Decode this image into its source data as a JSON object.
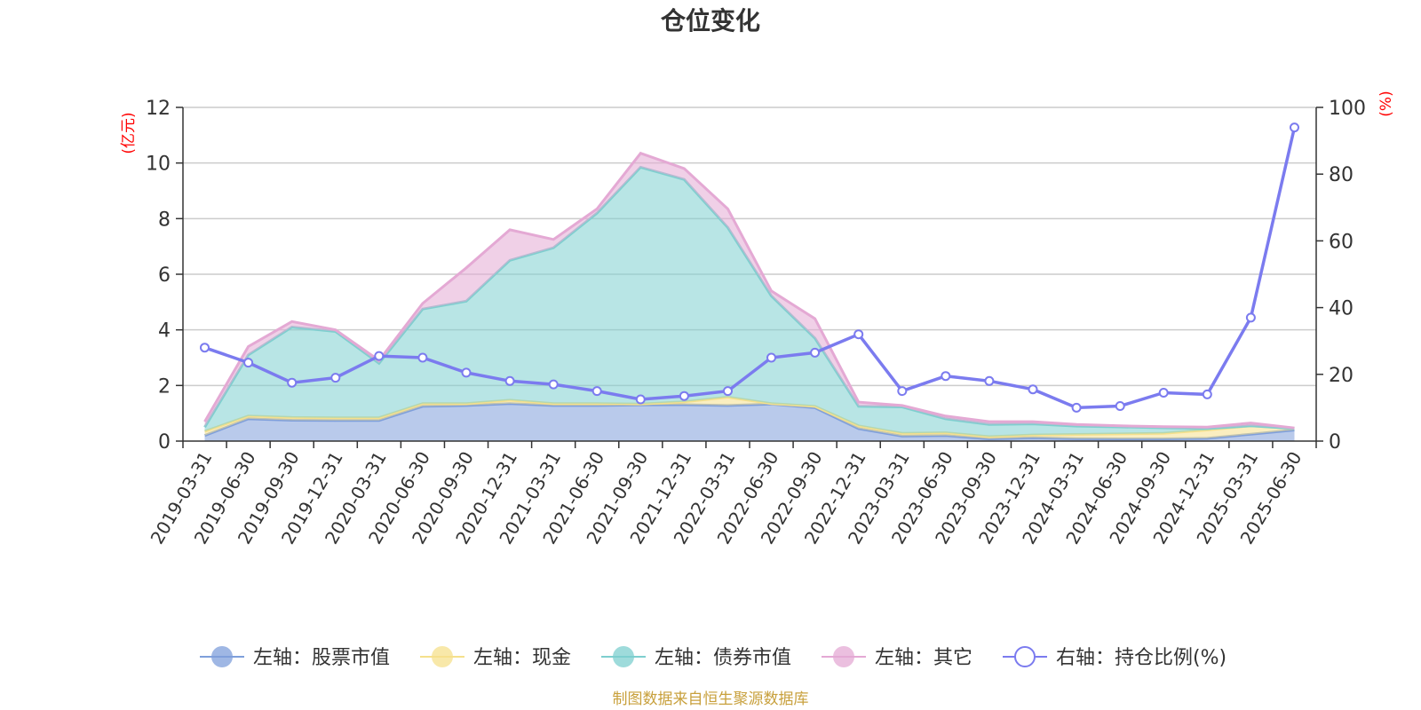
{
  "chart_data": {
    "type": "area",
    "title": "仓位变化",
    "left_axis_unit": "(亿元)",
    "right_axis_unit": "(%)",
    "y_left": {
      "min": 0,
      "max": 12,
      "ticks": [
        "0",
        "2",
        "4",
        "6",
        "8",
        "10",
        "12"
      ]
    },
    "y_right": {
      "min": 0,
      "max": 100,
      "ticks": [
        "0",
        "20",
        "40",
        "60",
        "80",
        "100"
      ]
    },
    "categories": [
      "2019-03-31",
      "2019-06-30",
      "2019-09-30",
      "2019-12-31",
      "2020-03-31",
      "2020-06-30",
      "2020-09-30",
      "2020-12-31",
      "2021-03-31",
      "2021-06-30",
      "2021-09-30",
      "2021-12-31",
      "2022-03-31",
      "2022-06-30",
      "2022-09-30",
      "2022-12-31",
      "2023-03-31",
      "2023-06-30",
      "2023-09-30",
      "2023-12-31",
      "2024-03-31",
      "2024-06-30",
      "2024-09-30",
      "2024-12-31",
      "2025-03-31",
      "2025-06-30"
    ],
    "stacked": true,
    "series": [
      {
        "name": "左轴：股票市值",
        "axis": "left",
        "type": "area",
        "color": "#7f9fdb",
        "values": [
          0.2,
          0.8,
          0.75,
          0.74,
          0.74,
          1.25,
          1.28,
          1.35,
          1.28,
          1.28,
          1.3,
          1.31,
          1.28,
          1.33,
          1.2,
          0.45,
          0.18,
          0.2,
          0.08,
          0.12,
          0.09,
          0.08,
          0.08,
          0.1,
          0.25,
          0.4
        ]
      },
      {
        "name": "左轴：现金",
        "axis": "left",
        "type": "area",
        "color": "#f5e08c",
        "values": [
          0.15,
          0.1,
          0.1,
          0.1,
          0.1,
          0.1,
          0.07,
          0.12,
          0.07,
          0.07,
          0.03,
          0.1,
          0.3,
          0.02,
          0.05,
          0.1,
          0.1,
          0.1,
          0.08,
          0.1,
          0.15,
          0.18,
          0.2,
          0.3,
          0.3,
          0.05
        ]
      },
      {
        "name": "左轴：债券市值",
        "axis": "left",
        "type": "area",
        "color": "#7ecfcf",
        "values": [
          0.15,
          2.2,
          3.25,
          3.1,
          1.96,
          3.4,
          3.68,
          5.03,
          5.6,
          6.85,
          8.52,
          8.0,
          6.1,
          3.87,
          2.45,
          0.7,
          0.95,
          0.5,
          0.44,
          0.4,
          0.3,
          0.25,
          0.2,
          0.05,
          0.0,
          0.0
        ]
      },
      {
        "name": "左轴：其它",
        "axis": "left",
        "type": "area",
        "color": "#e4a9d4",
        "values": [
          0.2,
          0.3,
          0.2,
          0.06,
          0.1,
          0.2,
          1.2,
          1.1,
          0.3,
          0.15,
          0.5,
          0.39,
          0.67,
          0.18,
          0.7,
          0.15,
          0.05,
          0.1,
          0.1,
          0.08,
          0.06,
          0.04,
          0.04,
          0.05,
          0.1,
          0.02
        ]
      },
      {
        "name": "右轴：持仓比例(%)",
        "axis": "right",
        "type": "line",
        "color": "#7b7bef",
        "values": [
          28.0,
          23.5,
          17.5,
          19.0,
          25.5,
          25.0,
          20.5,
          18.0,
          17.0,
          15.0,
          12.5,
          13.5,
          15.0,
          25.0,
          26.5,
          32.0,
          15.0,
          19.5,
          18.0,
          15.5,
          10.0,
          10.5,
          14.5,
          14.0,
          37.0,
          94.0
        ]
      }
    ],
    "legend_position": "bottom-center",
    "grid": true
  },
  "source_note": "制图数据来自恒生聚源数据库"
}
